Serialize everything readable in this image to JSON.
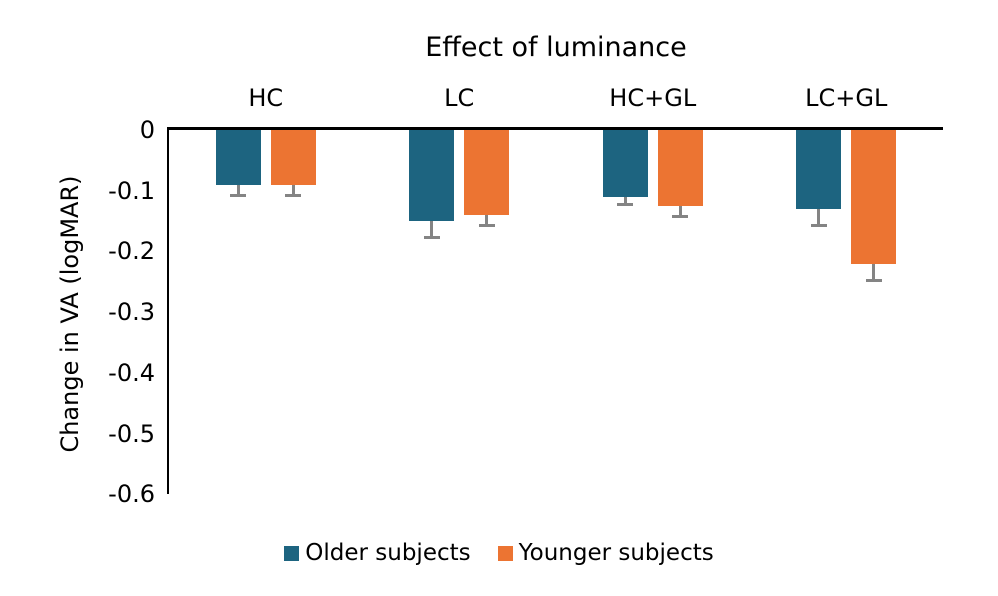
{
  "chart_data": {
    "type": "bar",
    "title": "Effect of luminance",
    "ylabel": "Change in VA (logMAR)",
    "xlabel": "",
    "categories": [
      "HC",
      "LC",
      "HC+GL",
      "LC+GL"
    ],
    "series": [
      {
        "name": "Older subjects",
        "color": "#1D6480",
        "values": [
          -0.09,
          -0.15,
          -0.11,
          -0.13
        ],
        "errors_minus": [
          0.02,
          0.03,
          0.015,
          0.03
        ]
      },
      {
        "name": "Younger subjects",
        "color": "#EC7432",
        "values": [
          -0.09,
          -0.14,
          -0.125,
          -0.22
        ],
        "errors_minus": [
          0.02,
          0.02,
          0.02,
          0.03
        ]
      }
    ],
    "ylim": [
      -0.6,
      0
    ],
    "yticks": [
      0,
      -0.1,
      -0.2,
      -0.3,
      -0.4,
      -0.5,
      -0.6
    ],
    "ytick_labels": [
      "0",
      "-0.1",
      "-0.2",
      "-0.3",
      "-0.4",
      "-0.5",
      "-0.6"
    ],
    "error_direction": "minus",
    "error_color": "#848484",
    "grid": false,
    "legend_position": "bottom",
    "category_label_position": "top"
  }
}
